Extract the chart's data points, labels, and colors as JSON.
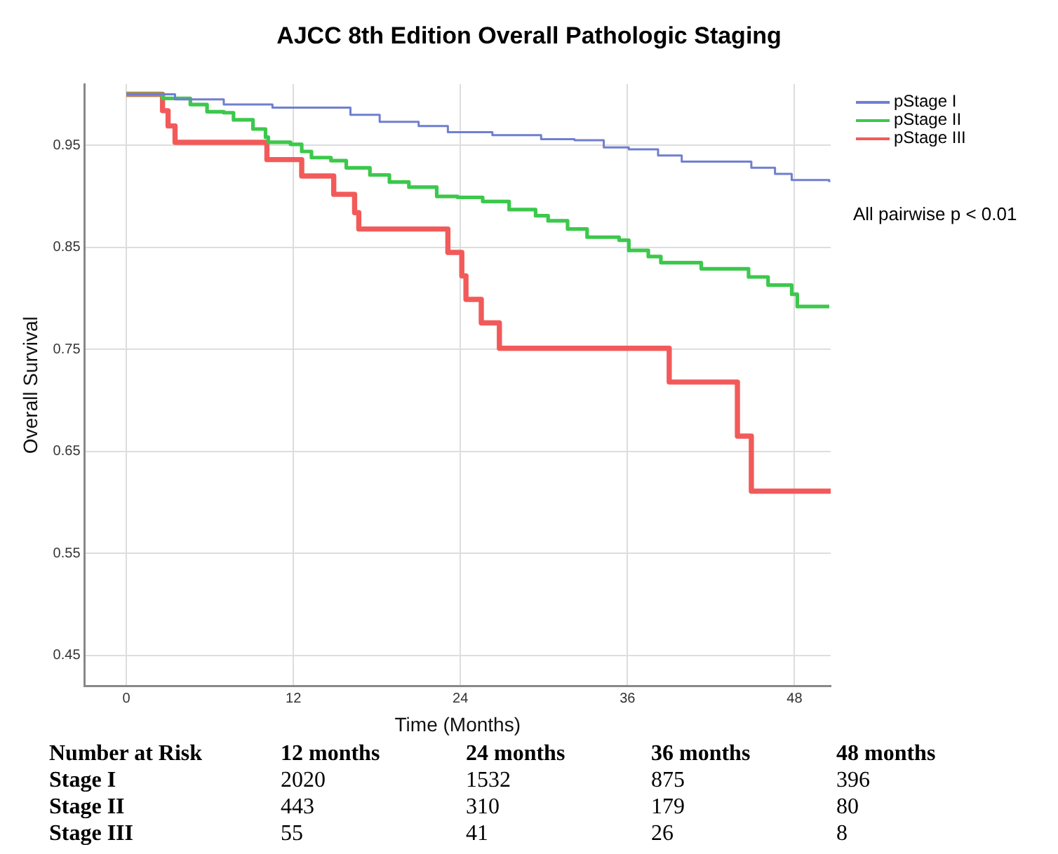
{
  "chart_data": {
    "type": "step",
    "title": "AJCC 8th Edition Overall Pathologic Staging",
    "xlabel": "Time (Months)",
    "ylabel": "Overall Survival",
    "xlim": [
      -3,
      50.6
    ],
    "xticks": [
      0,
      12,
      24,
      36,
      48
    ],
    "ylim": [
      0.42,
      1.01
    ],
    "yticks": [
      0.45,
      0.55,
      0.65,
      0.75,
      0.85,
      0.95
    ],
    "grid": true,
    "legend": "top right",
    "marker": "none",
    "series": [
      {
        "name": "pStage I",
        "color": "#6f7fd0",
        "x": [
          0,
          3.5,
          7.0,
          10.5,
          16.1,
          18.2,
          21.0,
          23.1,
          26.3,
          29.8,
          32.2,
          34.3,
          36.1,
          38.2,
          39.9,
          42.0,
          44.9,
          46.6,
          47.8,
          50.5
        ],
        "values": [
          1.0,
          0.995,
          0.99,
          0.987,
          0.98,
          0.973,
          0.969,
          0.963,
          0.96,
          0.956,
          0.955,
          0.948,
          0.946,
          0.94,
          0.934,
          0.934,
          0.928,
          0.922,
          0.916,
          0.914
        ]
      },
      {
        "name": "pStage II",
        "color": "#3cc84c",
        "x": [
          0,
          2.6,
          4.6,
          5.8,
          7.0,
          7.7,
          9.1,
          10.0,
          10.2,
          11.8,
          12.6,
          13.3,
          14.7,
          15.8,
          17.5,
          18.9,
          20.3,
          22.3,
          23.8,
          25.6,
          27.5,
          29.4,
          30.3,
          31.7,
          33.1,
          35.4,
          36.1,
          37.5,
          38.4,
          41.3,
          44.7,
          46.1,
          47.8,
          48.2,
          50.5
        ],
        "values": [
          1.0,
          0.996,
          0.99,
          0.983,
          0.982,
          0.975,
          0.966,
          0.958,
          0.953,
          0.951,
          0.944,
          0.938,
          0.935,
          0.928,
          0.921,
          0.914,
          0.909,
          0.9,
          0.899,
          0.895,
          0.887,
          0.881,
          0.876,
          0.868,
          0.86,
          0.857,
          0.847,
          0.841,
          0.835,
          0.829,
          0.821,
          0.813,
          0.804,
          0.792,
          0.792
        ]
      },
      {
        "name": "pStage III",
        "color": "#f25a5a",
        "x": [
          0,
          2.6,
          3.0,
          3.5,
          10.1,
          12.6,
          14.9,
          16.4,
          16.7,
          23.1,
          24.1,
          24.4,
          25.5,
          26.8,
          39.0,
          43.9,
          44.9,
          50.6
        ],
        "values": [
          1.0,
          0.984,
          0.969,
          0.953,
          0.936,
          0.92,
          0.902,
          0.884,
          0.868,
          0.845,
          0.822,
          0.799,
          0.776,
          0.751,
          0.718,
          0.665,
          0.611,
          0.611
        ]
      }
    ],
    "annotations": [
      "All pairwise p < 0.01",
      "Number at Risk",
      "12 months",
      "24 months",
      "36 months",
      "48 months",
      "Stage I",
      "2020",
      "1532",
      "875",
      "396",
      "Stage II",
      "443",
      "310",
      "179",
      "80",
      "Stage III",
      "55",
      "41",
      "26",
      "8"
    ]
  }
}
